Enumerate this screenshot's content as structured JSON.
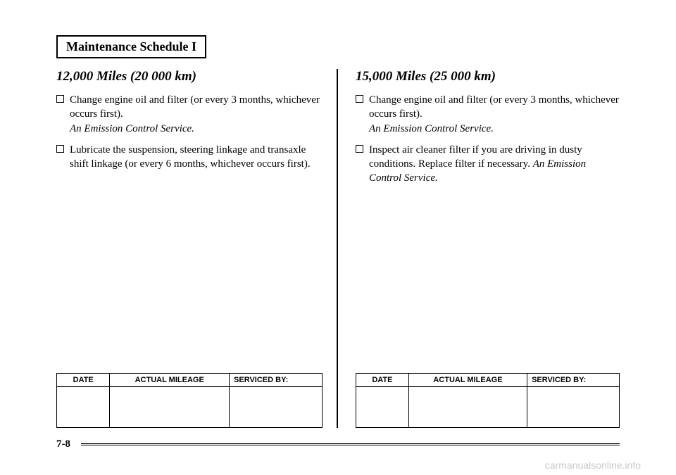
{
  "title": "Maintenance Schedule I",
  "left_section": {
    "heading": "12,000 Miles (20 000 km)",
    "items": [
      {
        "text": "Change engine oil and filter (or every 3 months, whichever occurs first).",
        "italic": "An Emission Control Service."
      },
      {
        "text": "Lubricate the suspension, steering linkage and transaxle shift linkage (or every 6 months, whichever occurs first).",
        "italic": ""
      }
    ]
  },
  "right_section": {
    "heading": "15,000 Miles (25 000 km)",
    "items": [
      {
        "text": "Change engine oil and filter (or every 3 months, whichever occurs first).",
        "italic": "An Emission Control Service."
      },
      {
        "text": "Inspect air cleaner filter if you are driving in dusty conditions. Replace filter if necessary.",
        "italic": "An Emission Control Service."
      }
    ]
  },
  "table_headers": {
    "date": "DATE",
    "mileage": "ACTUAL MILEAGE",
    "serviced": "SERVICED BY:"
  },
  "page_number": "7-8",
  "watermark": "carmanualsonline.info",
  "colors": {
    "background": "#ffffff",
    "text": "#000000",
    "watermark": "#c8c8c8"
  }
}
